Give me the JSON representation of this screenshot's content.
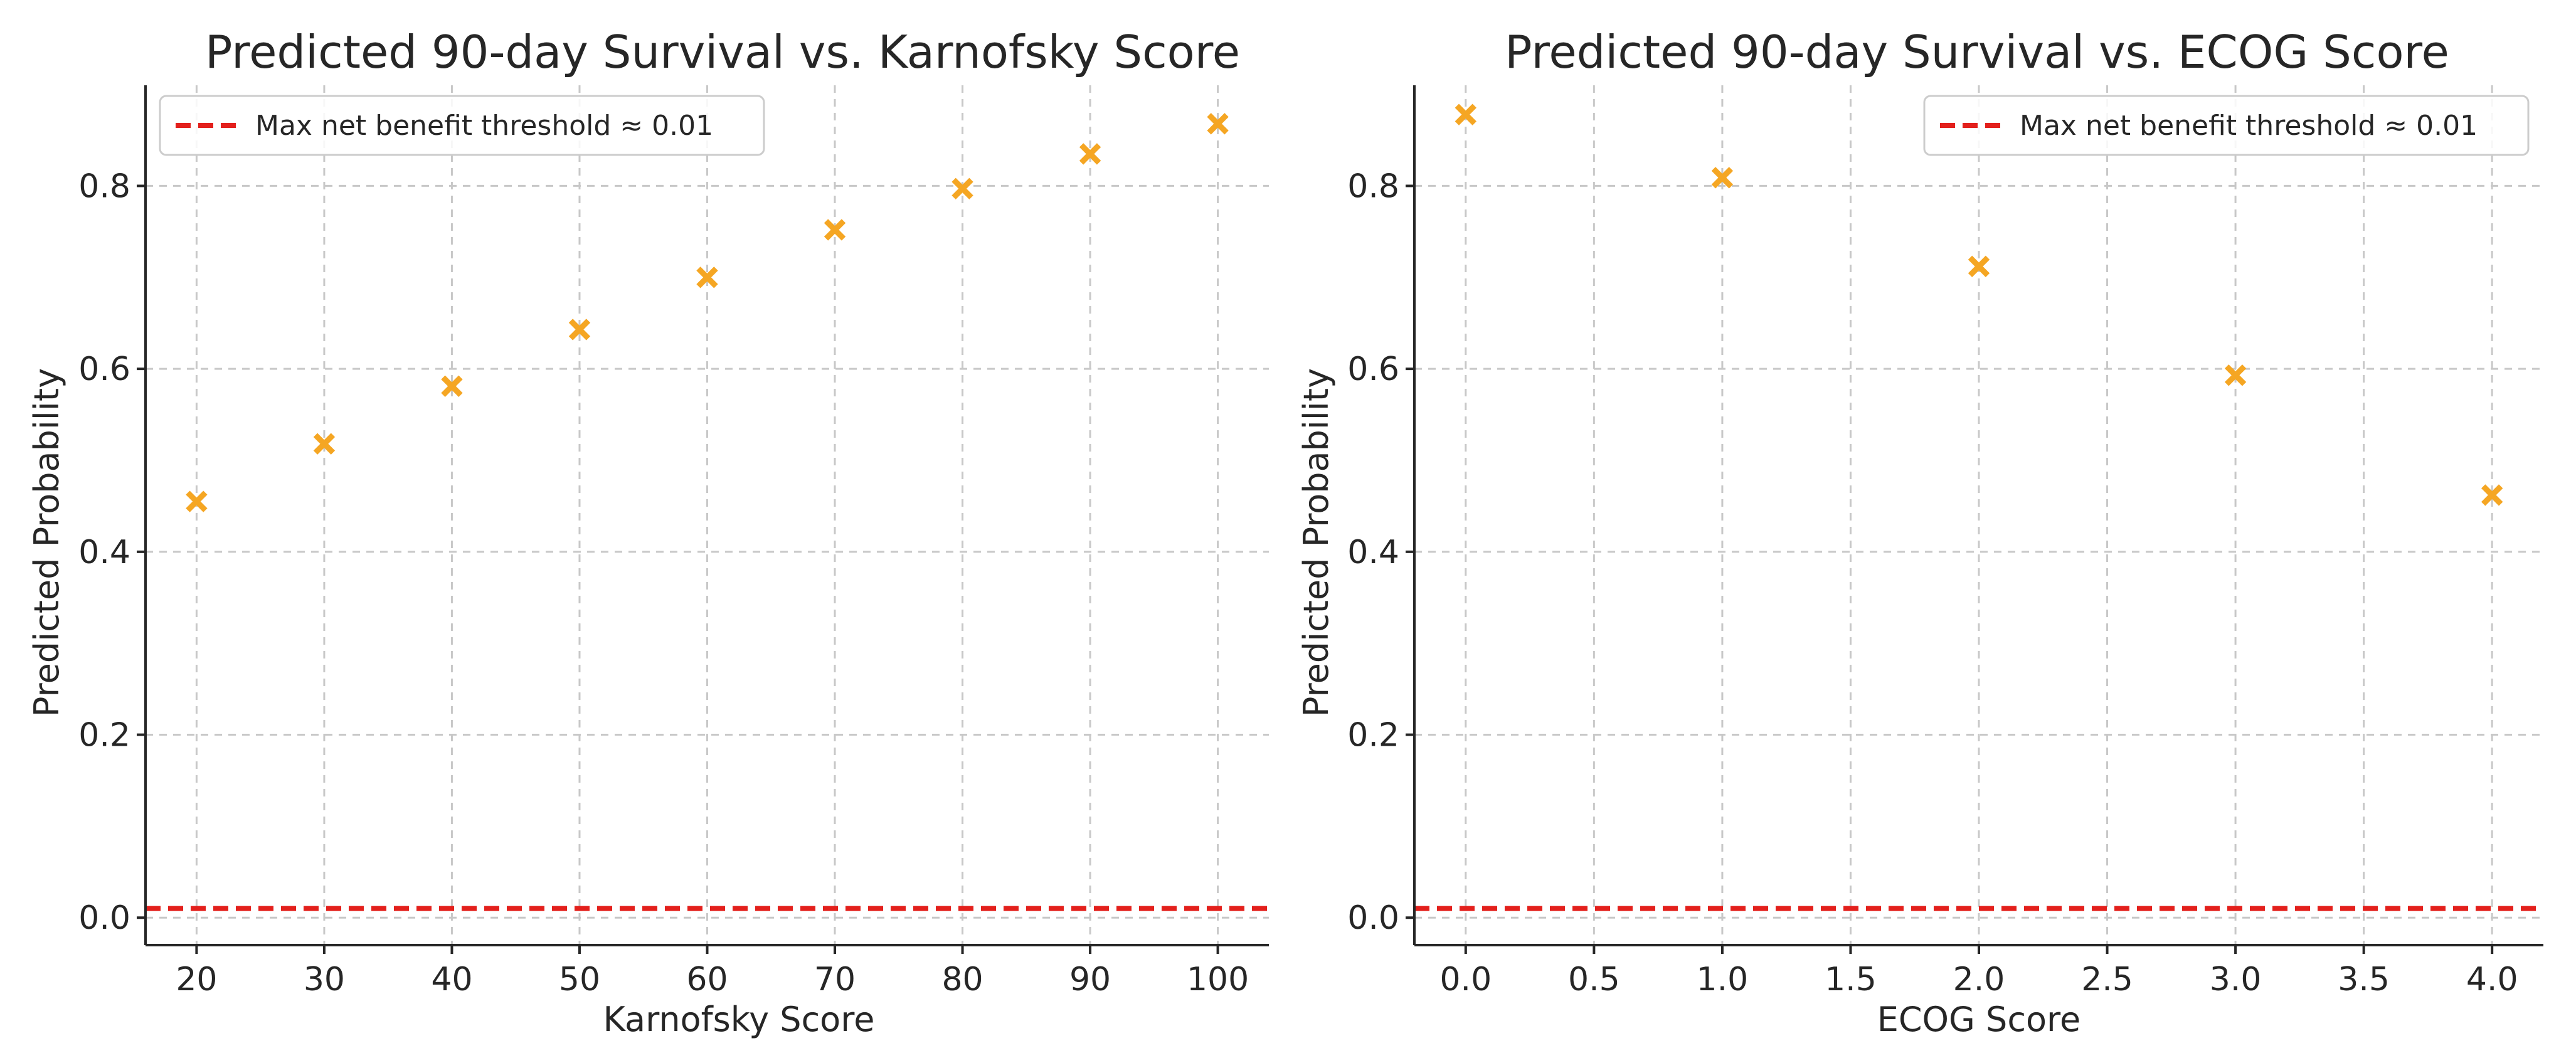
{
  "colors": {
    "marker": "#f5a623",
    "threshold_line": "#e3201c",
    "grid": "#c8c8c8",
    "axis": "#262626"
  },
  "chart_data": [
    {
      "type": "scatter",
      "title": "Predicted 90-day Survival vs. Karnofsky Score",
      "xlabel": "Karnofsky Score",
      "ylabel": "Predicted Probability",
      "x": [
        20,
        30,
        40,
        50,
        60,
        70,
        80,
        90,
        100
      ],
      "y": [
        0.455,
        0.518,
        0.581,
        0.643,
        0.7,
        0.752,
        0.797,
        0.835,
        0.868
      ],
      "xlim": [
        16,
        104
      ],
      "ylim": [
        -0.03,
        0.91
      ],
      "xticks": [
        20,
        30,
        40,
        50,
        60,
        70,
        80,
        90,
        100
      ],
      "xtick_labels": [
        "20",
        "30",
        "40",
        "50",
        "60",
        "70",
        "80",
        "90",
        "100"
      ],
      "yticks": [
        0.0,
        0.2,
        0.4,
        0.6,
        0.8
      ],
      "ytick_labels": [
        "0.0",
        "0.2",
        "0.4",
        "0.6",
        "0.8"
      ],
      "marker": "x",
      "threshold": 0.01,
      "threshold_style": "dashed",
      "legend": [
        "Max net benefit threshold ≈ 0.01"
      ],
      "legend_position": "top-left",
      "grid": true
    },
    {
      "type": "scatter",
      "title": "Predicted 90-day Survival vs. ECOG Score",
      "xlabel": "ECOG Score",
      "ylabel": "Predicted Probability",
      "x": [
        0.0,
        1.0,
        2.0,
        3.0,
        4.0
      ],
      "y": [
        0.878,
        0.809,
        0.712,
        0.593,
        0.462
      ],
      "xlim": [
        -0.2,
        4.2
      ],
      "ylim": [
        -0.03,
        0.91
      ],
      "xticks": [
        0.0,
        0.5,
        1.0,
        1.5,
        2.0,
        2.5,
        3.0,
        3.5,
        4.0
      ],
      "xtick_labels": [
        "0.0",
        "0.5",
        "1.0",
        "1.5",
        "2.0",
        "2.5",
        "3.0",
        "3.5",
        "4.0"
      ],
      "yticks": [
        0.0,
        0.2,
        0.4,
        0.6,
        0.8
      ],
      "ytick_labels": [
        "0.0",
        "0.2",
        "0.4",
        "0.6",
        "0.8"
      ],
      "marker": "x",
      "threshold": 0.01,
      "threshold_style": "dashed",
      "legend": [
        "Max net benefit threshold ≈ 0.01"
      ],
      "legend_position": "top-right",
      "grid": true
    }
  ]
}
